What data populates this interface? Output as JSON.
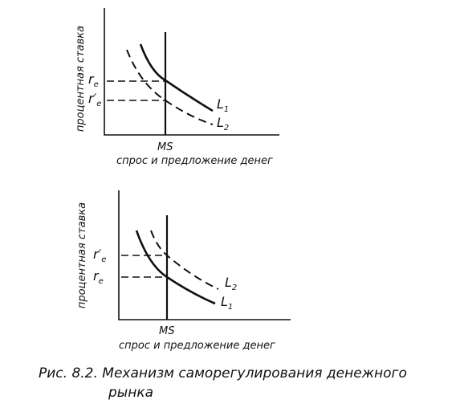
{
  "figures": [
    {
      "y_axis_label": "процентная ставка",
      "x_axis_label": "спрос и предложение денег",
      "supply_label": "MS",
      "rate_labels": [
        {
          "main": "r",
          "sub": "e"
        },
        {
          "main": "r′",
          "sub": "e"
        }
      ],
      "curve_labels": [
        {
          "main": "L",
          "sub": "1"
        },
        {
          "main": "L",
          "sub": "2"
        }
      ]
    },
    {
      "y_axis_label": "процентная ставка",
      "x_axis_label": "спрос и предложение денег",
      "supply_label": "MS",
      "rate_labels": [
        {
          "main": "r′",
          "sub": "e"
        },
        {
          "main": "r",
          "sub": "e"
        }
      ],
      "curve_labels": [
        {
          "main": "L",
          "sub": "2"
        },
        {
          "main": "L",
          "sub": "1"
        }
      ]
    }
  ],
  "caption": {
    "line1": "Рис. 8.2. Механизм саморегулирования денежного",
    "line2": "рынка"
  }
}
